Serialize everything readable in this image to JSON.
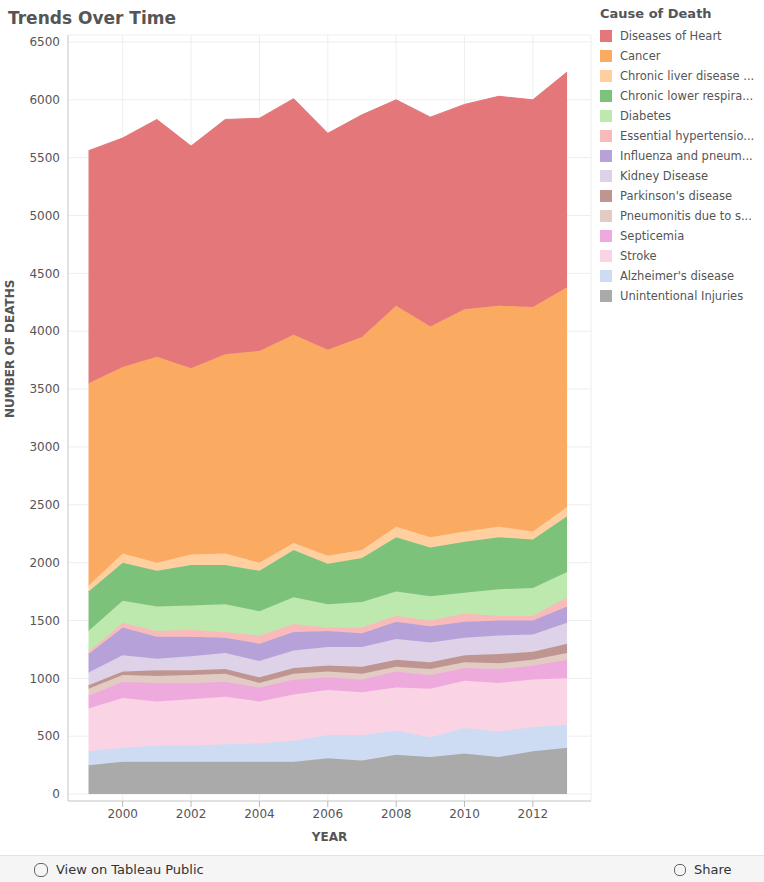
{
  "title": "Trends Over Time",
  "footer": {
    "link": "View on Tableau Public",
    "share": "Share"
  },
  "chart_data": {
    "type": "area",
    "stacked": true,
    "grid": true,
    "legend": "right",
    "legend_title": "Cause of Death",
    "x_label": "YEAR",
    "y_label": "NUMBER OF DEATHS",
    "x": [
      1999,
      2000,
      2001,
      2002,
      2003,
      2004,
      2005,
      2006,
      2007,
      2008,
      2009,
      2010,
      2011,
      2012,
      2013
    ],
    "xlim": [
      1998.4,
      2013.7
    ],
    "xticks": [
      2000,
      2002,
      2004,
      2006,
      2008,
      2010,
      2012
    ],
    "ylim": [
      -60,
      6560
    ],
    "yticks": [
      0,
      500,
      1000,
      1500,
      2000,
      2500,
      3000,
      3500,
      4000,
      4500,
      5000,
      5500,
      6000,
      6500
    ],
    "series": [
      {
        "name": "Diseases of Heart",
        "color": "#e4777a",
        "values": [
          2010,
          1980,
          2050,
          1920,
          2030,
          2010,
          2040,
          1870,
          1920,
          1780,
          1810,
          1770,
          1810,
          1790,
          1860
        ]
      },
      {
        "name": "Cancer",
        "color": "#fbaa62",
        "values": [
          1750,
          1610,
          1780,
          1610,
          1720,
          1830,
          1800,
          1780,
          1840,
          1910,
          1820,
          1920,
          1910,
          1940,
          1900
        ]
      },
      {
        "name": "Chronic liver disease ...",
        "color": "#ffcf9f",
        "values": [
          50,
          80,
          70,
          90,
          100,
          70,
          60,
          70,
          70,
          90,
          90,
          90,
          90,
          70,
          80
        ]
      },
      {
        "name": "Chronic lower respira...",
        "color": "#7cc27b",
        "values": [
          340,
          330,
          310,
          350,
          340,
          350,
          410,
          350,
          380,
          470,
          420,
          440,
          450,
          420,
          480
        ]
      },
      {
        "name": "Diabetes",
        "color": "#bde8ae",
        "values": [
          180,
          190,
          210,
          210,
          240,
          210,
          230,
          200,
          220,
          210,
          210,
          180,
          230,
          240,
          220
        ]
      },
      {
        "name": "Essential hypertensio...",
        "color": "#f9baba",
        "values": [
          20,
          40,
          50,
          60,
          50,
          70,
          70,
          30,
          50,
          50,
          50,
          70,
          40,
          40,
          80
        ]
      },
      {
        "name": "Influenza and pneum...",
        "color": "#b7a1d9",
        "values": [
          160,
          240,
          190,
          170,
          130,
          150,
          160,
          140,
          120,
          150,
          140,
          140,
          130,
          120,
          140
        ]
      },
      {
        "name": "Kidney Disease",
        "color": "#ddd2e8",
        "values": [
          110,
          140,
          100,
          120,
          140,
          140,
          150,
          160,
          170,
          180,
          170,
          150,
          160,
          150,
          180
        ]
      },
      {
        "name": "Parkinson's disease",
        "color": "#bf9591",
        "values": [
          30,
          30,
          50,
          40,
          40,
          50,
          50,
          50,
          60,
          60,
          60,
          60,
          80,
          70,
          80
        ]
      },
      {
        "name": "Pneumonitis due to s...",
        "color": "#e2cbc3",
        "values": [
          60,
          60,
          60,
          70,
          70,
          40,
          50,
          50,
          50,
          40,
          50,
          50,
          50,
          50,
          60
        ]
      },
      {
        "name": "Septicemia",
        "color": "#eeaadd",
        "values": [
          110,
          140,
          160,
          140,
          130,
          120,
          130,
          110,
          110,
          140,
          120,
          110,
          120,
          120,
          160
        ]
      },
      {
        "name": "Stroke",
        "color": "#fad3e5",
        "values": [
          370,
          430,
          380,
          400,
          410,
          360,
          400,
          390,
          370,
          370,
          420,
          410,
          420,
          410,
          400
        ]
      },
      {
        "name": "Alzheimer's disease",
        "color": "#cedcf3",
        "values": [
          120,
          120,
          140,
          140,
          150,
          160,
          180,
          200,
          220,
          210,
          170,
          220,
          220,
          210,
          200
        ]
      },
      {
        "name": "Unintentional Injuries",
        "color": "#aaaaaa",
        "values": [
          250,
          280,
          280,
          280,
          280,
          280,
          280,
          310,
          290,
          340,
          320,
          350,
          320,
          370,
          400
        ]
      }
    ]
  }
}
